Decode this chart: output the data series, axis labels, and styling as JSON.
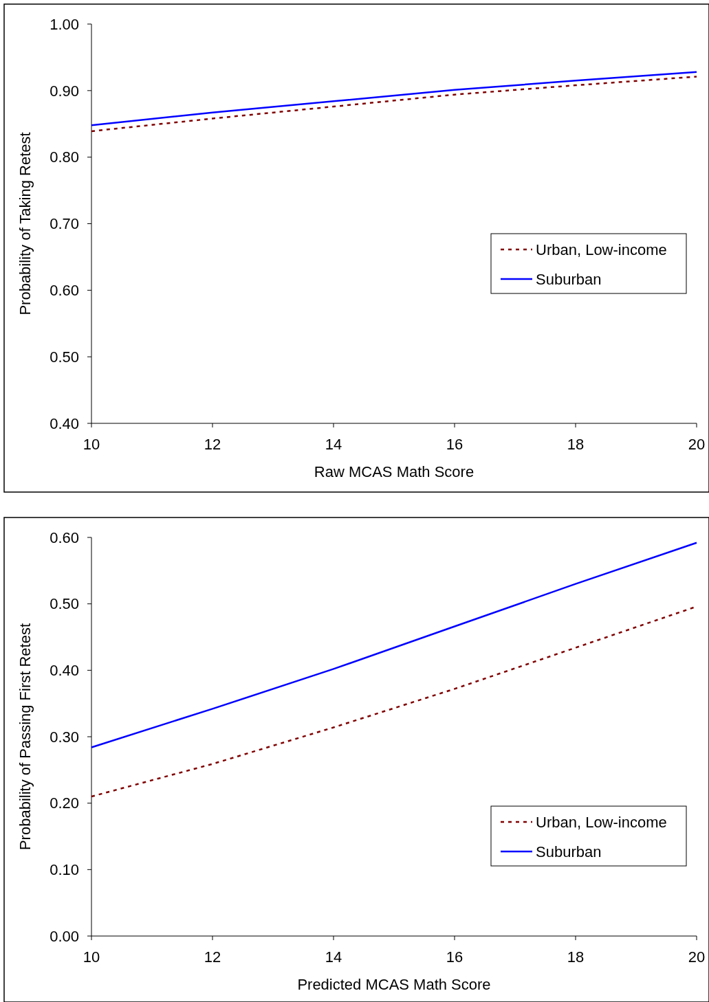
{
  "chart_data": [
    {
      "type": "line",
      "xlabel": "Raw MCAS Math Score",
      "ylabel": "Probability of Taking Retest",
      "x": [
        10,
        12,
        14,
        16,
        18,
        20
      ],
      "xlim": [
        10,
        20
      ],
      "xticks": [
        10,
        12,
        14,
        16,
        18,
        20
      ],
      "ylim": [
        0.4,
        1.0
      ],
      "yticks": [
        {
          "value": 0.4,
          "label": "0.40"
        },
        {
          "value": 0.5,
          "label": "0.50"
        },
        {
          "value": 0.6,
          "label": "0.60"
        },
        {
          "value": 0.7,
          "label": "0.70"
        },
        {
          "value": 0.8,
          "label": "0.80"
        },
        {
          "value": 0.9,
          "label": "0.90"
        },
        {
          "value": 1.0,
          "label": "1.00"
        }
      ],
      "grid": false,
      "legend": "right",
      "marker": "none",
      "series": [
        {
          "name": "Urban, Low-income",
          "color": "#800000",
          "line_style": "dashed",
          "values": [
            0.839,
            0.858,
            0.876,
            0.894,
            0.908,
            0.921
          ]
        },
        {
          "name": "Suburban",
          "color": "#0000ff",
          "line_style": "solid",
          "values": [
            0.848,
            0.867,
            0.884,
            0.901,
            0.915,
            0.928
          ]
        }
      ]
    },
    {
      "type": "line",
      "xlabel": "Predicted MCAS Math Score",
      "ylabel": "Probability of Passing First Retest",
      "x": [
        10,
        12,
        14,
        16,
        18,
        20
      ],
      "xlim": [
        10,
        20
      ],
      "xticks": [
        10,
        12,
        14,
        16,
        18,
        20
      ],
      "ylim": [
        0,
        0.6
      ],
      "yticks": [
        {
          "value": 0,
          "label": "0.00"
        },
        {
          "value": 0.1,
          "label": "0.10"
        },
        {
          "value": 0.2,
          "label": "0.20"
        },
        {
          "value": 0.3,
          "label": "0.30"
        },
        {
          "value": 0.4,
          "label": "0.40"
        },
        {
          "value": 0.5,
          "label": "0.50"
        },
        {
          "value": 0.6,
          "label": "0.60"
        }
      ],
      "grid": false,
      "legend": "right",
      "marker": "none",
      "series": [
        {
          "name": "Urban, Low-income",
          "color": "#800000",
          "line_style": "dashed",
          "values": [
            0.21,
            0.259,
            0.314,
            0.372,
            0.434,
            0.496
          ]
        },
        {
          "name": "Suburban",
          "color": "#0000ff",
          "line_style": "solid",
          "values": [
            0.284,
            0.342,
            0.402,
            0.466,
            0.53,
            0.592
          ]
        }
      ]
    }
  ]
}
